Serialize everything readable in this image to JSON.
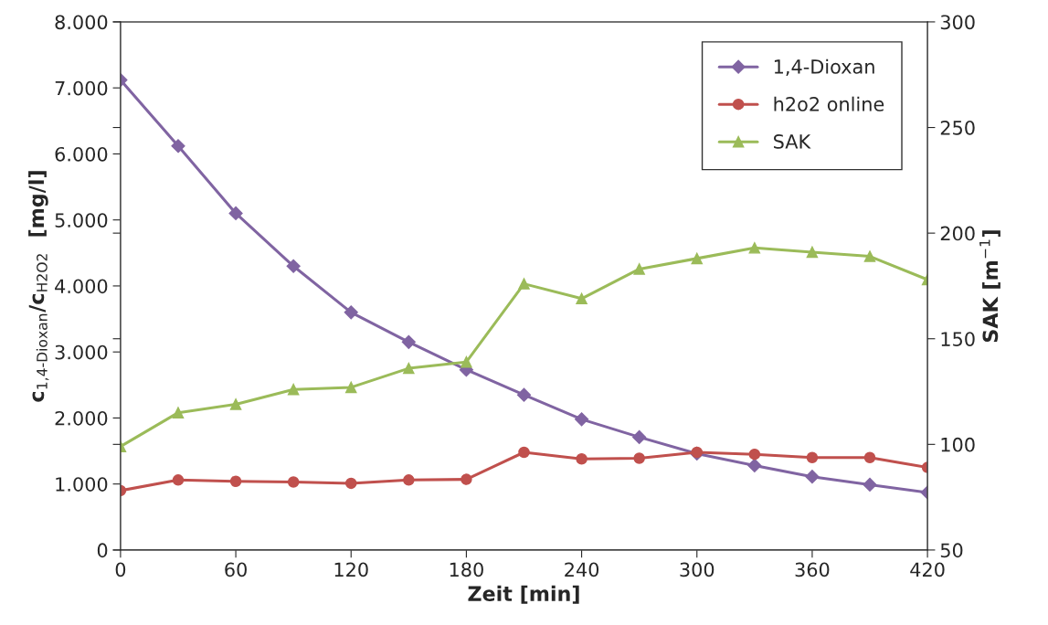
{
  "chart_data": {
    "type": "line",
    "xlabel": "Zeit [min]",
    "ylabel": "c$_{1,4-Dioxan}$/c$_{H2O2}$  [mg/l]",
    "y2label": "SAK [m$^{−1}$]",
    "x": [
      0,
      30,
      60,
      90,
      120,
      150,
      180,
      210,
      240,
      270,
      300,
      330,
      360,
      390,
      420
    ],
    "xlim": [
      0,
      420
    ],
    "xticks": [
      0,
      60,
      120,
      180,
      240,
      300,
      360,
      420
    ],
    "ylim": [
      0,
      8000
    ],
    "yticks": [
      0,
      {
        "value": 1000,
        "label": "1.000"
      },
      {
        "value": 2000,
        "label": "2.000"
      },
      {
        "value": 3000,
        "label": "3.000"
      },
      {
        "value": 4000,
        "label": "4.000"
      },
      {
        "value": 5000,
        "label": "5.000"
      },
      {
        "value": 6000,
        "label": "6.000"
      },
      {
        "value": 7000,
        "label": "7.000"
      },
      {
        "value": 8000,
        "label": "8.000"
      }
    ],
    "y2lim": [
      50,
      300
    ],
    "y2ticks": [
      50,
      100,
      150,
      200,
      250,
      300
    ],
    "grid": false,
    "legend": "top right",
    "series": [
      {
        "name": "1,4-Dioxan",
        "color": "#8064a2",
        "marker": "diamond",
        "values": [
          7120,
          6120,
          5100,
          4300,
          3600,
          3150,
          2730,
          2350,
          1980,
          1710,
          1460,
          1280,
          1110,
          990,
          870
        ]
      },
      {
        "name": "h2o2 online",
        "color": "#c0504d",
        "marker": "circle",
        "values": [
          900,
          1060,
          1040,
          1030,
          1010,
          1060,
          1070,
          1480,
          1380,
          1390,
          1480,
          1450,
          1400,
          1400,
          1250
        ]
      },
      {
        "name": "SAK",
        "color": "#9bbb59",
        "marker": "triangle",
        "axis": "y2",
        "values": [
          99,
          115,
          119,
          126,
          127,
          136,
          139,
          176,
          169,
          183,
          188,
          193,
          191,
          189,
          178
        ]
      }
    ]
  }
}
